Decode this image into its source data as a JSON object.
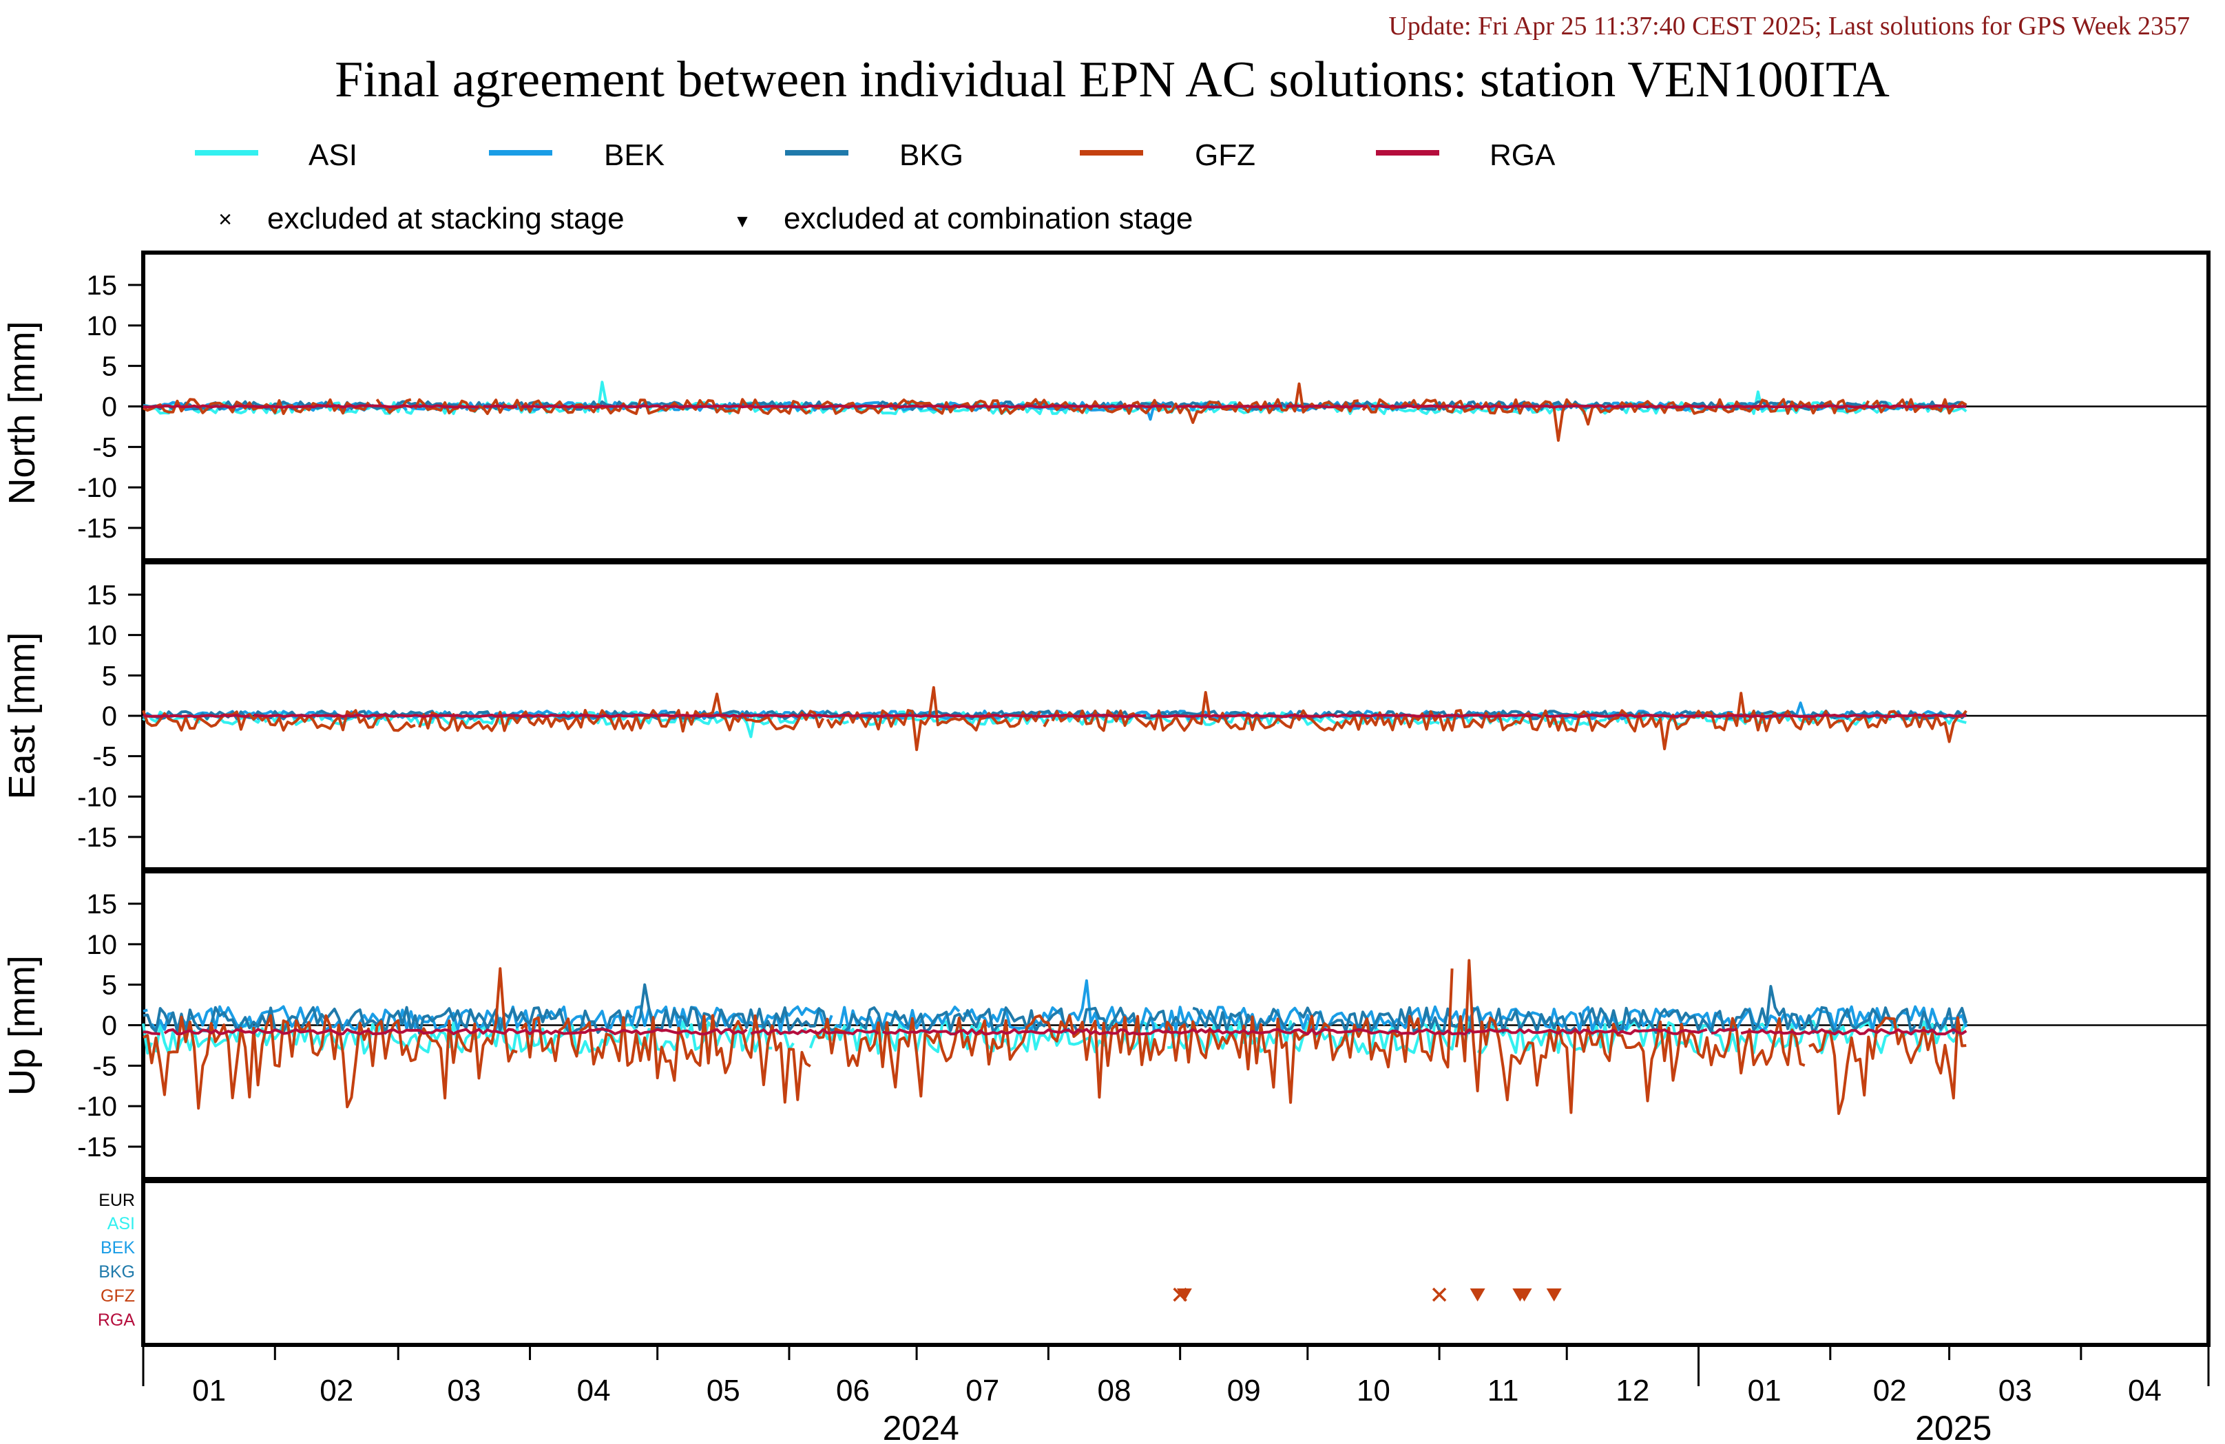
{
  "header": {
    "update_text": "Update: Fri Apr 25 11:37:40 CEST 2025; Last solutions for GPS Week 2357",
    "title": "Final agreement between individual EPN AC solutions: station VEN100ITA"
  },
  "colors": {
    "update_text": "#8b1a1a",
    "ASI": "#33f0f0",
    "BEK": "#1a9de6",
    "BKG": "#1f7aab",
    "GFZ": "#c44010",
    "RGA": "#b50d3c",
    "EUR": "#000000"
  },
  "legend": {
    "series": [
      "ASI",
      "BEK",
      "BKG",
      "GFZ",
      "RGA"
    ],
    "markers": [
      {
        "symbol": "×",
        "label": "excluded at stacking stage"
      },
      {
        "symbol": "▼",
        "label": "excluded at combination stage"
      }
    ]
  },
  "exclusion_panel": {
    "labels": [
      "EUR",
      "ASI",
      "BEK",
      "BKG",
      "GFZ",
      "RGA"
    ]
  },
  "x_axis": {
    "months": [
      {
        "label": "01",
        "month": "2024-01"
      },
      {
        "label": "02",
        "month": "2024-02"
      },
      {
        "label": "03",
        "month": "2024-03"
      },
      {
        "label": "04",
        "month": "2024-04"
      },
      {
        "label": "05",
        "month": "2024-05"
      },
      {
        "label": "06",
        "month": "2024-06"
      },
      {
        "label": "07",
        "month": "2024-07"
      },
      {
        "label": "08",
        "month": "2024-08"
      },
      {
        "label": "09",
        "month": "2024-09"
      },
      {
        "label": "10",
        "month": "2024-10"
      },
      {
        "label": "11",
        "month": "2024-11"
      },
      {
        "label": "12",
        "month": "2024-12"
      },
      {
        "label": "01",
        "month": "2025-01"
      },
      {
        "label": "02",
        "month": "2025-02"
      },
      {
        "label": "03",
        "month": "2025-03"
      },
      {
        "label": "04",
        "month": "2025-04"
      }
    ],
    "years": [
      {
        "label": "2024",
        "start": "2024-01-01",
        "end": "2025-01-01"
      },
      {
        "label": "2025",
        "start": "2025-01-01",
        "end": "2025-05-01"
      }
    ]
  },
  "chart_data": [
    {
      "type": "line",
      "panel": "North",
      "ylabel": "North [mm]",
      "ylim": [
        -19,
        19
      ],
      "yticks": [
        15,
        10,
        5,
        0,
        -5,
        -10,
        -15
      ],
      "x": [
        "2024-01-01",
        "2025-04-30"
      ],
      "zero_line": true,
      "series": [
        {
          "name": "ASI",
          "amplitude": 0.7,
          "mean": -0.2,
          "spikes": [
            [
              "2024-04-18",
              3.0
            ],
            [
              "2025-01-15",
              1.8
            ]
          ]
        },
        {
          "name": "BEK",
          "amplitude": 0.5,
          "mean": 0.0,
          "spikes": [
            [
              "2024-08-25",
              -1.6
            ]
          ]
        },
        {
          "name": "BKG",
          "amplitude": 0.5,
          "mean": 0.1,
          "spikes": []
        },
        {
          "name": "GFZ",
          "amplitude": 0.9,
          "mean": 0.0,
          "spikes": [
            [
              "2024-09-29",
              2.8
            ],
            [
              "2024-11-29",
              -4.2
            ],
            [
              "2024-12-06",
              -2.2
            ],
            [
              "2024-09-04",
              -2.0
            ]
          ]
        },
        {
          "name": "RGA",
          "amplitude": 0.1,
          "mean": 0.0,
          "spikes": []
        }
      ]
    },
    {
      "type": "line",
      "panel": "East",
      "ylabel": "East [mm]",
      "ylim": [
        -19,
        19
      ],
      "yticks": [
        15,
        10,
        5,
        0,
        -5,
        -10,
        -15
      ],
      "x": [
        "2024-01-01",
        "2025-04-30"
      ],
      "zero_line": true,
      "series": [
        {
          "name": "ASI",
          "amplitude": 0.8,
          "mean": -0.3,
          "spikes": [
            [
              "2024-05-23",
              -2.6
            ]
          ]
        },
        {
          "name": "BEK",
          "amplitude": 0.5,
          "mean": 0.1,
          "spikes": [
            [
              "2025-01-25",
              1.6
            ]
          ]
        },
        {
          "name": "BKG",
          "amplitude": 0.5,
          "mean": 0.1,
          "spikes": []
        },
        {
          "name": "GFZ",
          "amplitude": 1.3,
          "mean": -0.6,
          "spikes": [
            [
              "2024-05-15",
              2.7
            ],
            [
              "2024-07-05",
              3.5
            ],
            [
              "2024-07-01",
              -4.2
            ],
            [
              "2024-09-07",
              2.9
            ],
            [
              "2024-12-24",
              -4.1
            ],
            [
              "2025-01-11",
              2.8
            ],
            [
              "2025-03-01",
              -3.2
            ]
          ]
        },
        {
          "name": "RGA",
          "amplitude": 0.1,
          "mean": 0.0,
          "spikes": []
        }
      ]
    },
    {
      "type": "line",
      "panel": "Up",
      "ylabel": "Up [mm]",
      "ylim": [
        -19,
        19
      ],
      "yticks": [
        15,
        10,
        5,
        0,
        -5,
        -10,
        -15
      ],
      "x": [
        "2024-01-01",
        "2025-04-30"
      ],
      "zero_line": true,
      "series": [
        {
          "name": "ASI",
          "amplitude": 2.0,
          "mean": -1.5,
          "spikes": []
        },
        {
          "name": "BEK",
          "amplitude": 1.5,
          "mean": 0.8,
          "spikes": [
            [
              "2024-08-10",
              5.5
            ]
          ]
        },
        {
          "name": "BKG",
          "amplitude": 1.6,
          "mean": 0.6,
          "spikes": [
            [
              "2024-04-28",
              5.0
            ],
            [
              "2025-01-18",
              4.8
            ]
          ]
        },
        {
          "name": "GFZ",
          "amplitude": 3.2,
          "mean": -2.0,
          "spikes": [
            [
              "2024-03-25",
              7.0
            ],
            [
              "2024-11-08",
              8.0
            ],
            [
              "2024-11-04",
              7.0
            ],
            [
              "2024-12-02",
              -10.8
            ],
            [
              "2024-03-12",
              -9.0
            ],
            [
              "2025-03-02",
              -9.0
            ]
          ]
        },
        {
          "name": "RGA",
          "amplitude": 0.3,
          "mean": -0.8,
          "spikes": []
        }
      ]
    },
    {
      "type": "scatter",
      "panel": "exclusions",
      "categories": [
        "EUR",
        "ASI",
        "BEK",
        "BKG",
        "GFZ",
        "RGA"
      ],
      "points": [
        {
          "date": "2024-09-01",
          "series": "GFZ",
          "marker": "stacking"
        },
        {
          "date": "2024-09-02",
          "series": "GFZ",
          "marker": "combination"
        },
        {
          "date": "2024-11-01",
          "series": "GFZ",
          "marker": "stacking"
        },
        {
          "date": "2024-11-10",
          "series": "GFZ",
          "marker": "combination"
        },
        {
          "date": "2024-11-20",
          "series": "GFZ",
          "marker": "combination"
        },
        {
          "date": "2024-11-21",
          "series": "GFZ",
          "marker": "combination"
        },
        {
          "date": "2024-11-28",
          "series": "GFZ",
          "marker": "combination"
        }
      ]
    }
  ]
}
